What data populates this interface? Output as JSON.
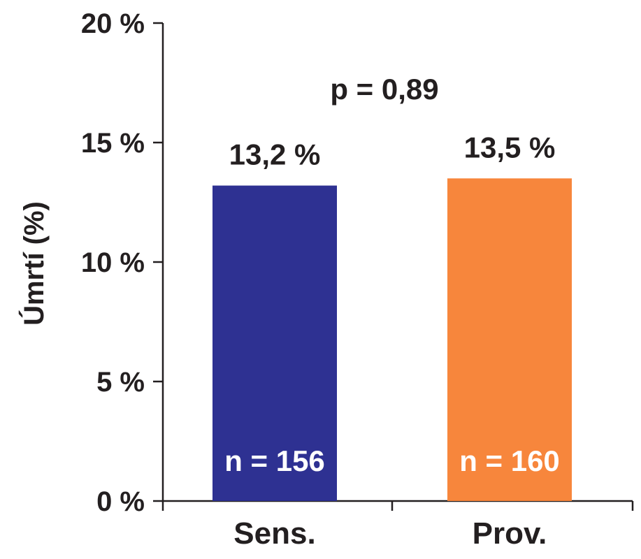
{
  "chart_data": {
    "type": "bar",
    "ylabel": "Úmrtí (%)",
    "ylim": [
      0,
      20
    ],
    "yticks": [
      {
        "value": 0,
        "label": "0 %"
      },
      {
        "value": 5,
        "label": "5 %"
      },
      {
        "value": 10,
        "label": "10 %"
      },
      {
        "value": 15,
        "label": "15 %"
      },
      {
        "value": 20,
        "label": "20 %"
      }
    ],
    "categories": [
      "Sens.",
      "Prov."
    ],
    "values": [
      13.2,
      13.5
    ],
    "value_labels": [
      "13,2 %",
      "13,5 %"
    ],
    "n_labels": [
      "n = 156",
      "n = 160"
    ],
    "colors": [
      "#2e3192",
      "#f7863c"
    ],
    "annotation": "p = 0,89",
    "grid": false,
    "legend": "none"
  }
}
